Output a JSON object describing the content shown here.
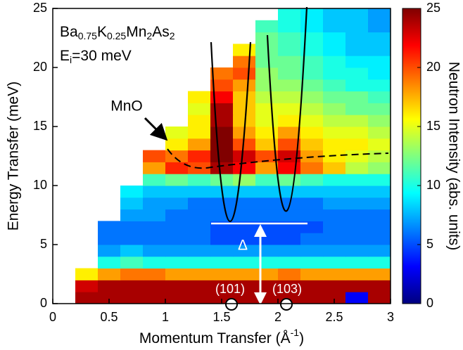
{
  "chart_data": {
    "type": "heatmap",
    "formula": [
      "Ba",
      "0.75",
      "K",
      "0.25",
      "Mn",
      "2",
      "As",
      "2"
    ],
    "incident_energy": [
      "E",
      "i",
      "=30 meV"
    ],
    "annotations": {
      "mno": "MnO",
      "gap": "Δ",
      "peak_101": "(101)",
      "peak_103": "(103)"
    },
    "xlabel": [
      "Momentum Transfer (Å",
      "-1",
      ")"
    ],
    "ylabel": "Energy Transfer (meV)",
    "zlabel": "Neutron Intensity (abs. units)",
    "colormap": "jet",
    "xlim": [
      0,
      3
    ],
    "xticks": [
      0,
      0.5,
      1,
      1.5,
      2,
      2.5,
      3
    ],
    "ylim": [
      0,
      25
    ],
    "yticks": [
      0,
      5,
      10,
      15,
      20,
      25
    ],
    "zlim": [
      0,
      25
    ],
    "zticks": [
      0,
      5,
      10,
      15,
      20,
      25
    ],
    "x": [
      0.1,
      0.3,
      0.5,
      0.7,
      0.9,
      1.1,
      1.3,
      1.5,
      1.7,
      1.9,
      2.1,
      2.3,
      2.5,
      2.7,
      2.9
    ],
    "y": [
      0.5,
      1.5,
      2.5,
      3.5,
      4.5,
      5.5,
      6.5,
      7.5,
      8.5,
      9.5,
      10.5,
      11.5,
      12.5,
      13.5,
      14.5,
      15.5,
      16.5,
      17.5,
      18.5,
      19.5,
      20.5,
      21.5,
      22.5,
      23.5,
      24.5
    ],
    "z": [
      [
        null,
        24,
        24,
        24,
        24,
        24,
        24,
        24,
        24,
        24,
        24,
        24,
        24,
        3,
        24
      ],
      [
        null,
        23,
        24,
        24,
        24,
        24,
        24,
        24,
        24,
        24,
        24,
        24,
        24,
        24,
        24
      ],
      [
        null,
        16,
        18,
        19,
        19,
        18,
        18,
        18,
        18,
        18,
        19,
        18,
        18,
        18,
        18
      ],
      [
        null,
        null,
        10,
        11,
        10,
        10,
        10,
        10,
        10,
        10,
        10,
        10,
        10,
        10,
        10
      ],
      [
        null,
        null,
        7,
        8,
        7,
        7,
        7,
        7,
        7,
        7,
        7,
        7,
        7,
        7,
        7
      ],
      [
        null,
        null,
        6,
        6,
        6,
        6,
        6,
        5,
        5,
        5,
        5,
        6,
        6,
        6,
        6
      ],
      [
        null,
        null,
        6,
        6,
        6,
        6,
        6,
        5,
        5,
        5,
        5,
        5,
        6,
        6,
        6
      ],
      [
        null,
        null,
        null,
        7,
        7,
        6,
        6,
        6,
        6,
        6,
        6,
        6,
        6,
        6,
        6
      ],
      [
        null,
        null,
        null,
        8,
        7,
        7,
        6,
        6,
        6,
        6,
        6,
        6,
        7,
        7,
        7
      ],
      [
        null,
        null,
        null,
        9,
        8,
        8,
        8,
        8,
        8,
        8,
        8,
        8,
        8,
        8,
        8
      ],
      [
        null,
        null,
        null,
        null,
        11,
        12,
        11,
        12,
        13,
        11,
        12,
        11,
        10,
        10,
        10
      ],
      [
        null,
        null,
        null,
        null,
        18,
        21,
        20,
        24,
        22,
        18,
        22,
        19,
        17,
        14,
        13
      ],
      [
        null,
        null,
        null,
        null,
        20,
        19,
        21,
        25,
        23,
        20,
        23,
        18,
        16,
        15,
        14
      ],
      [
        null,
        null,
        null,
        null,
        null,
        16,
        18,
        25,
        20,
        17,
        20,
        17,
        16,
        16,
        15
      ],
      [
        null,
        null,
        null,
        null,
        null,
        15,
        16,
        25,
        18,
        16,
        18,
        16,
        15,
        15,
        14
      ],
      [
        null,
        null,
        null,
        null,
        null,
        null,
        16,
        24,
        17,
        15,
        16,
        15,
        14,
        14,
        13
      ],
      [
        null,
        null,
        null,
        null,
        null,
        null,
        15,
        24,
        17,
        15,
        15,
        14,
        13,
        12,
        12
      ],
      [
        null,
        null,
        null,
        null,
        null,
        null,
        16,
        22,
        17,
        14,
        14,
        13,
        12,
        12,
        11
      ],
      [
        null,
        null,
        null,
        null,
        null,
        null,
        null,
        20,
        18,
        13,
        13,
        12,
        11,
        10,
        10
      ],
      [
        null,
        null,
        null,
        null,
        null,
        null,
        null,
        19,
        20,
        13,
        12,
        11,
        10,
        10,
        9
      ],
      [
        null,
        null,
        null,
        null,
        null,
        null,
        null,
        null,
        19,
        12,
        12,
        11,
        10,
        9,
        9
      ],
      [
        null,
        null,
        null,
        null,
        null,
        null,
        null,
        null,
        16,
        12,
        11,
        10,
        9,
        8,
        8
      ],
      [
        null,
        null,
        null,
        null,
        null,
        null,
        null,
        null,
        null,
        12,
        11,
        10,
        9,
        8,
        8
      ],
      [
        null,
        null,
        null,
        null,
        null,
        null,
        null,
        null,
        null,
        11,
        10,
        9,
        8,
        8,
        7
      ],
      [
        null,
        null,
        null,
        null,
        null,
        null,
        null,
        null,
        null,
        null,
        10,
        9,
        8,
        8,
        7
      ]
    ]
  }
}
